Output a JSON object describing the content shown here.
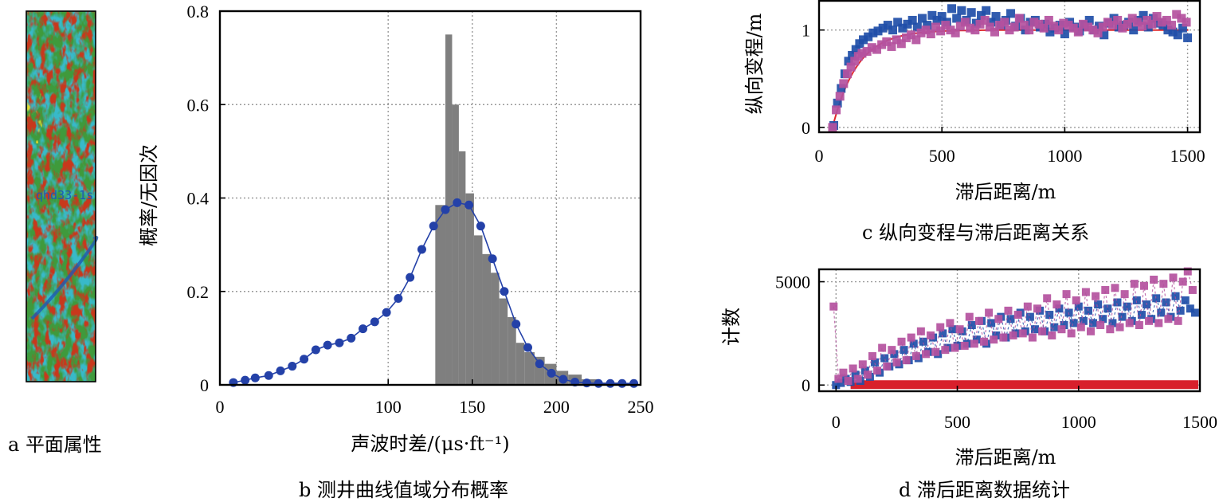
{
  "captions": {
    "a": "a  平面属性",
    "b": "b  测井曲线值域分布概率",
    "c": "c  纵向变程与滞后距离关系",
    "d": "d  滞后距离数据统计"
  },
  "panel_a": {
    "well_label": "qhd33-1s",
    "colors": {
      "green": "#3f9a3c",
      "cyan": "#38b9c9",
      "red": "#c8371c",
      "yellow": "#e8d92c",
      "blue": "#1e5ab4"
    }
  },
  "chart_data": [
    {
      "id": "b",
      "type": "bar",
      "xlabel": "声波时差/(μs·ft⁻¹)",
      "ylabel": "概率/无因次",
      "xlim": [
        0,
        250
      ],
      "ylim": [
        0,
        0.8
      ],
      "xticks": [
        "0",
        "100",
        "150",
        "200",
        "250"
      ],
      "xtick_values": [
        0,
        100,
        150,
        200,
        250
      ],
      "yticks": [
        "0",
        "0.2",
        "0.4",
        "0.6",
        "0.8"
      ],
      "ytick_values": [
        0,
        0.2,
        0.4,
        0.6,
        0.8
      ],
      "grid": true,
      "bar_color": "#7f7f7f",
      "bars": [
        {
          "x0": 128,
          "x1": 134,
          "y": 0.385
        },
        {
          "x0": 134,
          "x1": 138,
          "y": 0.75
        },
        {
          "x0": 138,
          "x1": 142,
          "y": 0.6
        },
        {
          "x0": 142,
          "x1": 146,
          "y": 0.5
        },
        {
          "x0": 146,
          "x1": 151,
          "y": 0.41
        },
        {
          "x0": 151,
          "x1": 156,
          "y": 0.32
        },
        {
          "x0": 156,
          "x1": 161,
          "y": 0.28
        },
        {
          "x0": 161,
          "x1": 166,
          "y": 0.24
        },
        {
          "x0": 166,
          "x1": 171,
          "y": 0.185
        },
        {
          "x0": 171,
          "x1": 176,
          "y": 0.145
        },
        {
          "x0": 176,
          "x1": 181,
          "y": 0.09
        },
        {
          "x0": 181,
          "x1": 187,
          "y": 0.07
        },
        {
          "x0": 187,
          "x1": 193,
          "y": 0.06
        },
        {
          "x0": 193,
          "x1": 200,
          "y": 0.045
        },
        {
          "x0": 200,
          "x1": 207,
          "y": 0.03
        },
        {
          "x0": 207,
          "x1": 215,
          "y": 0.022
        },
        {
          "x0": 215,
          "x1": 225,
          "y": 0.012
        },
        {
          "x0": 225,
          "x1": 240,
          "y": 0.005
        }
      ],
      "series": [
        {
          "color": "#2441a8",
          "x": [
            8,
            15,
            21,
            29,
            36,
            43,
            50,
            57,
            64,
            71,
            78,
            85,
            92,
            99,
            106,
            113,
            120,
            127,
            134,
            141,
            148,
            155,
            162,
            169,
            176,
            183,
            190,
            197,
            204,
            211,
            218,
            225,
            232,
            239,
            246
          ],
          "y": [
            0.005,
            0.01,
            0.015,
            0.02,
            0.03,
            0.04,
            0.055,
            0.075,
            0.085,
            0.09,
            0.1,
            0.12,
            0.135,
            0.155,
            0.185,
            0.23,
            0.29,
            0.34,
            0.375,
            0.39,
            0.385,
            0.34,
            0.27,
            0.2,
            0.13,
            0.08,
            0.045,
            0.025,
            0.012,
            0.006,
            0.004,
            0.003,
            0.003,
            0.003,
            0.003
          ]
        }
      ]
    },
    {
      "id": "c",
      "type": "scatter",
      "xlabel": "滞后距离/m",
      "ylabel": "纵向变程/m",
      "xlim": [
        0,
        1550
      ],
      "ylim": [
        -0.05,
        1.3
      ],
      "xticks": [
        "0",
        "500",
        "1000",
        "1500"
      ],
      "xtick_values": [
        0,
        500,
        1000,
        1500
      ],
      "yticks": [
        "0",
        "1"
      ],
      "ytick_values": [
        0,
        1
      ],
      "grid": true,
      "fit_curve": {
        "color": "#e0282c",
        "model": "exponential",
        "sill": 1.0,
        "range": 300,
        "nugget_start": 55
      },
      "series": [
        {
          "color": "#1f4ea8",
          "shape": "square",
          "x": [
            60,
            75,
            90,
            105,
            120,
            135,
            150,
            165,
            180,
            200,
            220,
            240,
            260,
            280,
            300,
            320,
            340,
            360,
            380,
            400,
            420,
            440,
            460,
            480,
            500,
            520,
            540,
            560,
            580,
            600,
            620,
            640,
            660,
            680,
            700,
            720,
            740,
            760,
            780,
            800,
            820,
            840,
            860,
            880,
            900,
            920,
            940,
            960,
            980,
            1000,
            1020,
            1040,
            1060,
            1080,
            1100,
            1120,
            1140,
            1160,
            1180,
            1200,
            1220,
            1240,
            1260,
            1280,
            1300,
            1320,
            1340,
            1360,
            1380,
            1400,
            1420,
            1440,
            1460,
            1480,
            1500
          ],
          "y": [
            0.02,
            0.25,
            0.4,
            0.55,
            0.68,
            0.74,
            0.8,
            0.86,
            0.9,
            0.93,
            0.97,
            0.99,
            1.02,
            1.05,
            1.0,
            1.08,
            1.02,
            1.06,
            1.1,
            1.03,
            1.12,
            1.05,
            1.15,
            1.1,
            1.14,
            1.08,
            1.22,
            1.12,
            1.2,
            1.1,
            1.18,
            1.07,
            1.15,
            1.2,
            1.08,
            1.14,
            1.05,
            1.1,
            1.17,
            1.04,
            1.12,
            1.0,
            1.08,
            1.1,
            1.03,
            1.06,
            0.98,
            1.02,
            1.05,
            0.96,
            1.08,
            1.03,
            0.99,
            1.05,
            1.1,
            1.0,
            1.04,
            0.95,
            1.07,
            1.12,
            1.03,
            1.05,
            1.08,
            1.0,
            1.1,
            1.15,
            1.03,
            1.12,
            1.07,
            1.05,
            1.0,
            0.98,
            0.95,
            1.02,
            0.92
          ]
        },
        {
          "color": "#b4519e",
          "shape": "square",
          "x": [
            55,
            70,
            85,
            100,
            115,
            130,
            145,
            160,
            175,
            195,
            215,
            235,
            255,
            275,
            295,
            315,
            335,
            355,
            375,
            395,
            415,
            435,
            455,
            475,
            495,
            515,
            535,
            555,
            575,
            595,
            615,
            635,
            655,
            675,
            695,
            715,
            735,
            755,
            775,
            795,
            815,
            835,
            855,
            875,
            895,
            915,
            935,
            955,
            975,
            995,
            1015,
            1035,
            1055,
            1075,
            1095,
            1115,
            1135,
            1155,
            1175,
            1195,
            1215,
            1235,
            1255,
            1275,
            1295,
            1315,
            1335,
            1355,
            1375,
            1395,
            1415,
            1435,
            1455,
            1475,
            1495
          ],
          "y": [
            0.0,
            0.18,
            0.32,
            0.45,
            0.55,
            0.62,
            0.68,
            0.73,
            0.76,
            0.78,
            0.82,
            0.8,
            0.85,
            0.88,
            0.83,
            0.9,
            0.86,
            0.92,
            0.95,
            0.9,
            0.97,
            1.0,
            0.96,
            1.03,
            0.99,
            1.05,
            1.0,
            0.97,
            1.04,
            1.08,
            1.02,
            1.0,
            1.06,
            1.1,
            1.03,
            0.98,
            1.05,
            1.08,
            1.0,
            1.03,
            1.12,
            1.05,
            1.0,
            1.08,
            1.06,
            1.02,
            1.1,
            1.04,
            1.0,
            1.07,
            1.05,
            1.02,
            0.98,
            1.06,
            1.03,
            1.0,
            0.97,
            1.03,
            1.08,
            1.05,
            1.1,
            1.02,
            1.06,
            1.12,
            1.08,
            1.04,
            1.1,
            1.06,
            1.14,
            1.08,
            1.1,
            1.05,
            1.16,
            1.12,
            1.08
          ]
        }
      ]
    },
    {
      "id": "d",
      "type": "scatter",
      "xlabel": "滞后距离/m",
      "ylabel": "计数",
      "xlim": [
        -70,
        1500
      ],
      "ylim": [
        -300,
        5600
      ],
      "xticks": [
        "0",
        "500",
        "1000",
        "1500"
      ],
      "xtick_values": [
        0,
        500,
        1000,
        1500
      ],
      "yticks": [
        "0",
        "5000"
      ],
      "ytick_values": [
        0,
        5000
      ],
      "grid": true,
      "baseline": {
        "color": "#d8202b",
        "y": 0
      },
      "series": [
        {
          "color": "#1f4ea8",
          "shape": "square",
          "dashed": true,
          "x": [
            0,
            20,
            40,
            60,
            80,
            100,
            120,
            140,
            160,
            180,
            200,
            220,
            240,
            260,
            280,
            300,
            320,
            340,
            360,
            380,
            400,
            420,
            440,
            460,
            480,
            500,
            520,
            540,
            560,
            580,
            600,
            620,
            640,
            660,
            680,
            700,
            720,
            740,
            760,
            780,
            800,
            820,
            840,
            860,
            880,
            900,
            920,
            940,
            960,
            980,
            1000,
            1020,
            1040,
            1060,
            1080,
            1100,
            1120,
            1140,
            1160,
            1180,
            1200,
            1220,
            1240,
            1260,
            1280,
            1300,
            1320,
            1340,
            1360,
            1380,
            1400,
            1420,
            1440,
            1460,
            1480
          ],
          "y": [
            0,
            100,
            300,
            150,
            500,
            200,
            700,
            400,
            1100,
            600,
            1300,
            900,
            1500,
            1000,
            1700,
            1200,
            2000,
            1300,
            2100,
            1600,
            2300,
            1500,
            2500,
            1800,
            2700,
            1900,
            2600,
            2000,
            2900,
            2200,
            3100,
            2000,
            3000,
            2400,
            3300,
            2300,
            3200,
            2500,
            3500,
            2600,
            3300,
            2700,
            3600,
            2600,
            3400,
            2800,
            3700,
            2900,
            3500,
            3000,
            3800,
            3100,
            3600,
            3000,
            3900,
            3200,
            3700,
            3000,
            4000,
            3300,
            3800,
            3100,
            4100,
            3400,
            3900,
            3200,
            4200,
            3500,
            4000,
            3300,
            4300,
            3600,
            4100,
            3700,
            3500
          ]
        },
        {
          "color": "#b4519e",
          "shape": "square",
          "dashed": true,
          "x": [
            -10,
            10,
            30,
            50,
            70,
            90,
            110,
            130,
            150,
            170,
            190,
            210,
            230,
            250,
            270,
            290,
            310,
            330,
            350,
            370,
            390,
            410,
            430,
            450,
            470,
            490,
            510,
            530,
            550,
            570,
            590,
            610,
            630,
            650,
            670,
            690,
            710,
            730,
            750,
            770,
            790,
            810,
            830,
            850,
            870,
            890,
            910,
            930,
            950,
            970,
            990,
            1010,
            1030,
            1050,
            1070,
            1090,
            1110,
            1130,
            1150,
            1170,
            1190,
            1210,
            1230,
            1250,
            1270,
            1290,
            1310,
            1330,
            1350,
            1370,
            1390,
            1410,
            1430,
            1450,
            1470
          ],
          "y": [
            3800,
            300,
            600,
            200,
            800,
            300,
            1000,
            500,
            1400,
            700,
            1800,
            900,
            1700,
            1100,
            2100,
            1200,
            2300,
            1400,
            2600,
            1500,
            2400,
            1600,
            2800,
            1700,
            3000,
            1800,
            2700,
            1900,
            3300,
            2000,
            3100,
            2100,
            3500,
            2200,
            3200,
            2300,
            3600,
            2400,
            3400,
            2500,
            3800,
            2300,
            3700,
            2600,
            4200,
            2400,
            3900,
            2700,
            4400,
            2500,
            4100,
            2800,
            4500,
            2600,
            4300,
            2900,
            4600,
            2700,
            4700,
            2800,
            4400,
            3000,
            4900,
            2900,
            4800,
            3100,
            5100,
            3000,
            4900,
            3200,
            5200,
            3100,
            5000,
            5500,
            4600
          ]
        }
      ]
    }
  ]
}
